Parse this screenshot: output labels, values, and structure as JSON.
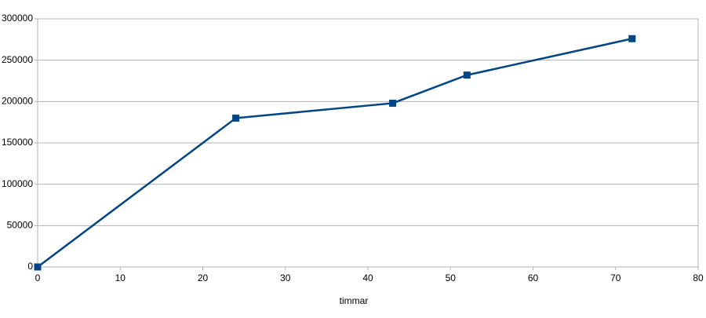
{
  "chart_data": {
    "type": "line",
    "x_label": "timmar",
    "x": [
      0,
      24,
      43,
      52,
      72
    ],
    "series": [
      {
        "color": "#004586",
        "values": [
          0,
          180000,
          198000,
          232000,
          276000
        ]
      }
    ],
    "xlim": [
      0,
      80
    ],
    "xticks": [
      0,
      10,
      20,
      30,
      40,
      50,
      60,
      70,
      80
    ],
    "ylim": [
      0,
      300000
    ],
    "yticks": [
      0,
      50000,
      100000,
      150000,
      200000,
      250000,
      300000
    ],
    "grid": true
  }
}
